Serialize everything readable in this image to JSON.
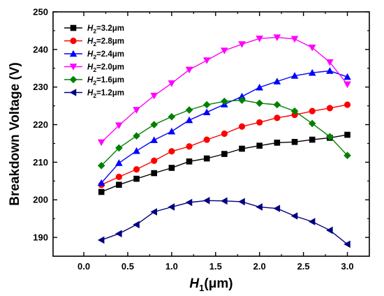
{
  "chart_data": {
    "type": "line",
    "title": "",
    "xlabel": {
      "main": "H",
      "sub": "1",
      "unit": "(μm)"
    },
    "ylabel": "Breakdown Voltage (V)",
    "xlim": [
      -0.35,
      3.25
    ],
    "ylim": [
      185,
      250
    ],
    "xticks": [
      "0.0",
      "0.5",
      "1.0",
      "1.5",
      "2.0",
      "2.5",
      "3.0"
    ],
    "yticks": [
      "190",
      "200",
      "210",
      "220",
      "230",
      "240",
      "250"
    ],
    "legend_position": "top-left",
    "x": [
      0.2,
      0.4,
      0.6,
      0.8,
      1.0,
      1.2,
      1.4,
      1.6,
      1.8,
      2.0,
      2.2,
      2.4,
      2.6,
      2.8,
      3.0
    ],
    "series": [
      {
        "name": "H2=3.2μm",
        "label": {
          "main": "H",
          "sub": "2",
          "rest": "=3.2μm"
        },
        "color": "#000000",
        "marker": "square",
        "values": [
          202.1,
          204.0,
          205.6,
          207.1,
          208.5,
          210.2,
          211.0,
          212.2,
          213.6,
          214.4,
          215.2,
          215.4,
          216.0,
          216.5,
          217.3
        ]
      },
      {
        "name": "H2=2.8μm",
        "label": {
          "main": "H",
          "sub": "2",
          "rest": "=2.8μm"
        },
        "color": "#ff0000",
        "marker": "circle",
        "values": [
          204.0,
          206.1,
          208.1,
          210.4,
          212.9,
          214.2,
          216.0,
          217.6,
          219.5,
          220.6,
          221.8,
          222.6,
          223.6,
          224.4,
          225.3
        ]
      },
      {
        "name": "H2=2.4μm",
        "label": {
          "main": "H",
          "sub": "2",
          "rest": "=2.4μm"
        },
        "color": "#0000ff",
        "marker": "triangle-up",
        "values": [
          204.5,
          209.8,
          213.0,
          215.9,
          218.2,
          221.2,
          223.3,
          225.4,
          227.5,
          229.9,
          231.5,
          233.0,
          233.8,
          234.3,
          232.7
        ]
      },
      {
        "name": "H2=2.0μm",
        "label": {
          "main": "H",
          "sub": "2",
          "rest": "=2.0μm"
        },
        "color": "#ff00ff",
        "marker": "triangle-down",
        "values": [
          215.3,
          219.8,
          223.9,
          227.7,
          231.0,
          234.6,
          237.1,
          239.7,
          241.4,
          242.9,
          243.2,
          242.8,
          240.5,
          236.6,
          230.7
        ]
      },
      {
        "name": "H2=1.6μm",
        "label": {
          "main": "H",
          "sub": "2",
          "rest": "=1.6μm"
        },
        "color": "#008000",
        "marker": "diamond",
        "values": [
          209.1,
          213.8,
          217.0,
          220.0,
          222.1,
          223.9,
          225.3,
          226.2,
          226.5,
          225.7,
          225.3,
          223.6,
          220.3,
          216.8,
          211.8
        ]
      },
      {
        "name": "H2=1.2μm",
        "label": {
          "main": "H",
          "sub": "2",
          "rest": "=1.2μm"
        },
        "color": "#000080",
        "marker": "triangle-left",
        "values": [
          189.3,
          191.0,
          193.4,
          196.8,
          198.1,
          199.3,
          199.8,
          199.7,
          199.5,
          198.1,
          197.7,
          195.7,
          194.2,
          191.9,
          188.2
        ]
      }
    ]
  }
}
